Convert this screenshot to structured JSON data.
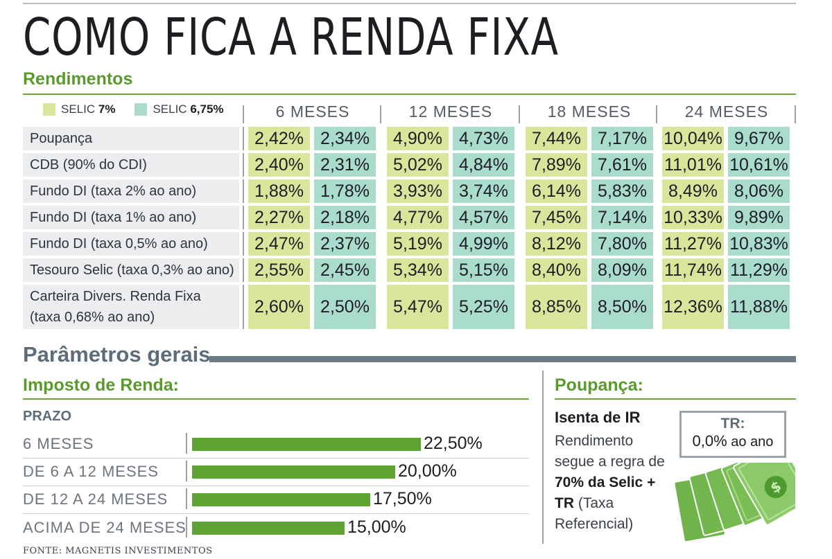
{
  "title": "COMO FICA A RENDA FIXA",
  "chart_data": {
    "type": "table",
    "section_title": "Rendimentos",
    "legend": [
      {
        "prefix": "SELIC",
        "value": "7%",
        "color": "#d9e59a"
      },
      {
        "prefix": "SELIC",
        "value": "6,75%",
        "color": "#aadccd"
      }
    ],
    "periods": [
      "6 MESES",
      "12 MESES",
      "18 MESES",
      "24 MESES"
    ],
    "rows": [
      {
        "label": "Poupança",
        "values": [
          "2,42%",
          "2,34%",
          "4,90%",
          "4,73%",
          "7,44%",
          "7,17%",
          "10,04%",
          "9,67%"
        ]
      },
      {
        "label": "CDB (90% do CDI)",
        "values": [
          "2,40%",
          "2,31%",
          "5,02%",
          "4,84%",
          "7,89%",
          "7,61%",
          "11,01%",
          "10,61%"
        ]
      },
      {
        "label": "Fundo DI (taxa 2% ao ano)",
        "values": [
          "1,88%",
          "1,78%",
          "3,93%",
          "3,74%",
          "6,14%",
          "5,83%",
          "8,49%",
          "8,06%"
        ]
      },
      {
        "label": "Fundo DI (taxa 1% ao ano)",
        "values": [
          "2,27%",
          "2,18%",
          "4,77%",
          "4,57%",
          "7,45%",
          "7,14%",
          "10,33%",
          "9,89%"
        ]
      },
      {
        "label": "Fundo DI (taxa 0,5% ao ano)",
        "values": [
          "2,47%",
          "2,37%",
          "5,19%",
          "4,99%",
          "8,12%",
          "7,80%",
          "11,27%",
          "10,83%"
        ]
      },
      {
        "label": "Tesouro Selic (taxa 0,3% ao ano)",
        "values": [
          "2,55%",
          "2,45%",
          "5,34%",
          "5,15%",
          "8,40%",
          "8,09%",
          "11,74%",
          "11,29%"
        ]
      },
      {
        "label": "Carteira Divers. Renda Fixa",
        "label2": "(taxa 0,68% ao ano)",
        "values": [
          "2,60%",
          "2,50%",
          "5,47%",
          "5,25%",
          "8,85%",
          "8,50%",
          "12,36%",
          "11,88%"
        ]
      }
    ]
  },
  "parametros": {
    "title": "Parâmetros gerais",
    "ir": {
      "title": "Imposto de Renda:",
      "prazo_label": "PRAZO",
      "bar_chart": {
        "type": "bar",
        "orientation": "horizontal",
        "xlim": [
          0,
          22.5
        ],
        "categories": [
          "6 MESES",
          "DE 6 A 12 MESES",
          "DE 12 A 24 MESES",
          "ACIMA DE 24 MESES"
        ],
        "values": [
          22.5,
          20.0,
          17.5,
          15.0
        ],
        "value_labels": [
          "22,50%",
          "20,00%",
          "17,50%",
          "15,00%"
        ],
        "bar_color": "#5ea334"
      }
    },
    "poupanca": {
      "title": "Poupança:",
      "isenta": "Isenta de IR",
      "text1": "Rendimento segue a regra de ",
      "bold1": "70% da Selic + TR",
      "text2": " (Taxa Referencial)",
      "tr_title": "TR:",
      "tr_value": "0,0%",
      "tr_unit": " ao ano"
    }
  },
  "fonte": "FONTE: MAGNETIS INVESTIMENTOS"
}
